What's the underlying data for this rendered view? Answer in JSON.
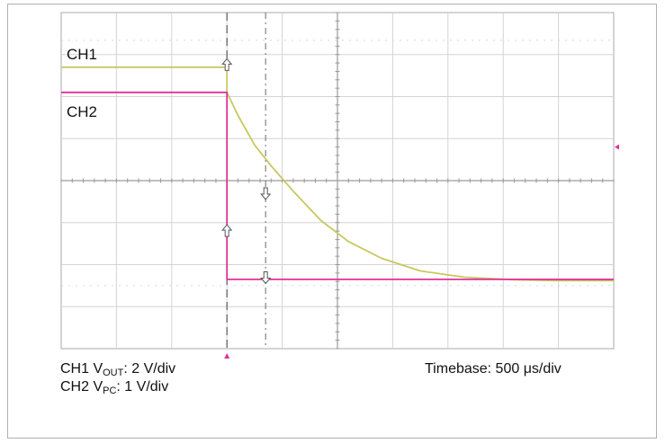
{
  "chart_data": {
    "type": "line",
    "title": "",
    "xlabel": "",
    "ylabel": "",
    "grid": true,
    "divisions": {
      "x": 10,
      "y": 8
    },
    "x_unit": "div",
    "xlim": [
      0,
      10
    ],
    "ylim": [
      -4,
      4
    ],
    "series": [
      {
        "name": "CH1",
        "color": "#c8c860",
        "x": [
          0,
          3.0,
          3.0,
          3.2,
          3.5,
          3.8,
          4.2,
          4.7,
          5.2,
          5.8,
          6.5,
          7.3,
          8.2,
          9.0,
          10
        ],
        "y": [
          2.7,
          2.7,
          2.1,
          1.55,
          0.85,
          0.35,
          -0.25,
          -0.95,
          -1.45,
          -1.85,
          -2.15,
          -2.3,
          -2.36,
          -2.38,
          -2.38
        ]
      },
      {
        "name": "CH2",
        "color": "#e0309a",
        "x": [
          0,
          3.0,
          3.0,
          10
        ],
        "y": [
          2.1,
          2.1,
          -2.35,
          -2.35
        ]
      }
    ],
    "markers": [
      {
        "type": "arrow",
        "x": 3.0,
        "y": 2.75,
        "dir": "up"
      },
      {
        "type": "arrow",
        "x": 3.0,
        "y": -1.2,
        "dir": "up"
      },
      {
        "type": "arrow",
        "x": 3.7,
        "y": -0.3,
        "dir": "down"
      },
      {
        "type": "arrow",
        "x": 3.7,
        "y": -2.3,
        "dir": "down"
      }
    ],
    "cursor_x": [
      3.0,
      3.7
    ],
    "trigger": {
      "x": 3.0,
      "level": 0.8
    }
  },
  "labels": {
    "ch1": "CH1",
    "ch2": "CH2",
    "ch1_scale_prefix": "CH1 V",
    "ch1_scale_sub": "OUT",
    "ch1_scale_suffix": ": 2 V/div",
    "ch2_scale_prefix": "CH2 V",
    "ch2_scale_sub": "PC",
    "ch2_scale_suffix": ": 1 V/div",
    "timebase": "Timebase: 500 μs/div"
  }
}
